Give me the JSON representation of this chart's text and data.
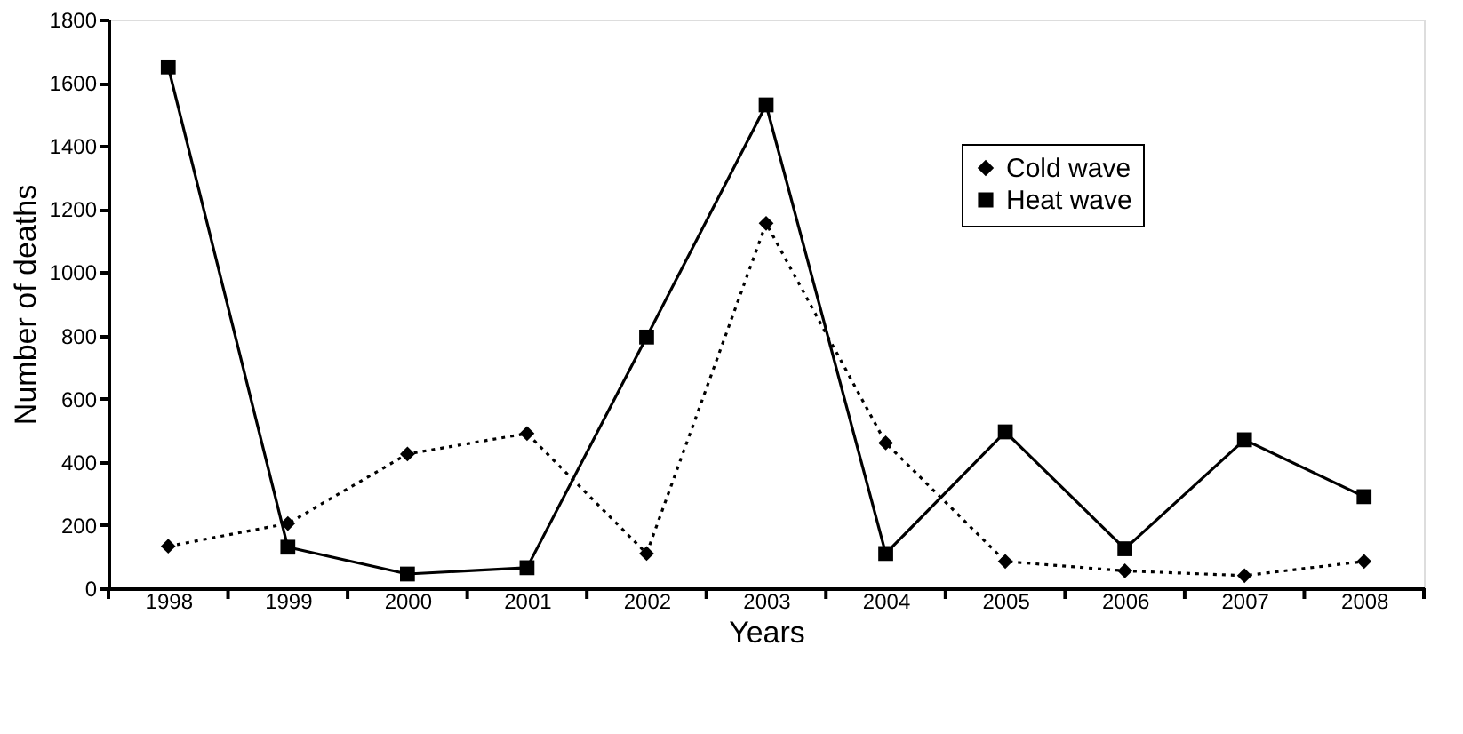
{
  "chart_data": {
    "type": "line",
    "xlabel": "Years",
    "ylabel": "Number of deaths",
    "categories": [
      "1998",
      "1999",
      "2000",
      "2001",
      "2002",
      "2003",
      "2004",
      "2005",
      "2006",
      "2007",
      "2008"
    ],
    "series": [
      {
        "name": "Cold wave",
        "color": "#000000",
        "marker": "diamond",
        "line_style": "dotted",
        "values": [
          133,
          205,
          425,
          490,
          110,
          1155,
          460,
          85,
          55,
          40,
          85
        ]
      },
      {
        "name": "Heat wave",
        "color": "#000000",
        "marker": "square",
        "line_style": "solid",
        "values": [
          1650,
          130,
          45,
          65,
          795,
          1530,
          110,
          495,
          125,
          470,
          290
        ]
      }
    ],
    "ylim": [
      0,
      1800
    ],
    "yticks": [
      0,
      200,
      400,
      600,
      800,
      1000,
      1200,
      1400,
      1600,
      1800
    ],
    "grid": false,
    "legend": "top right"
  }
}
